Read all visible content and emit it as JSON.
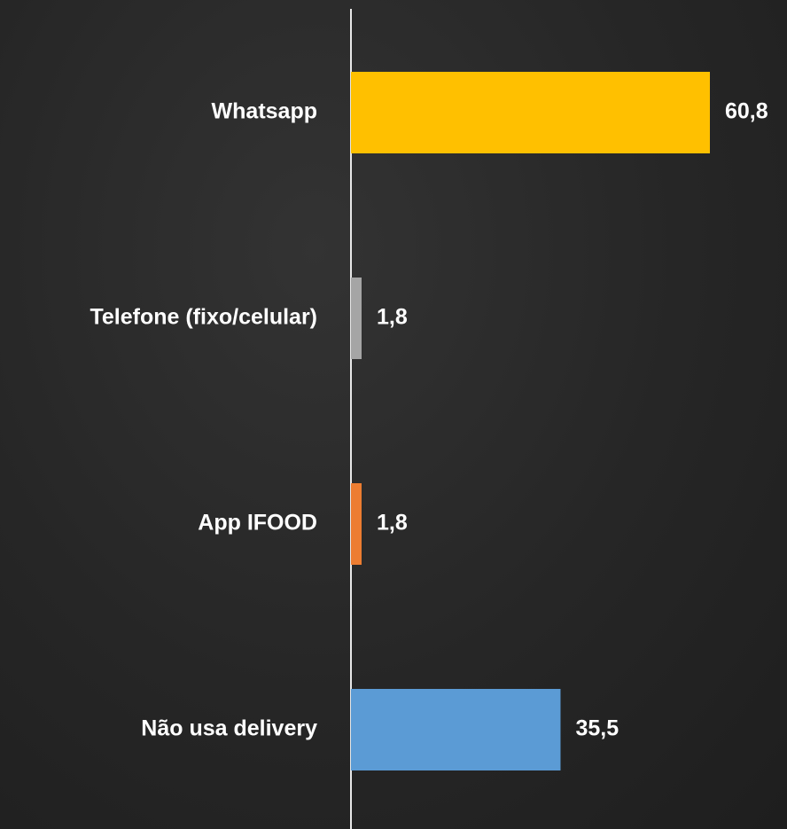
{
  "chart_data": {
    "type": "bar",
    "orientation": "horizontal",
    "categories": [
      "Whatsapp",
      "Telefone (fixo/celular)",
      "App IFOOD",
      "Não usa delivery"
    ],
    "values": [
      60.8,
      1.8,
      1.8,
      35.5
    ],
    "value_labels": [
      "60,8",
      "1,8",
      "1,8",
      "35,5"
    ],
    "colors": [
      "#ffc000",
      "#a5a5a5",
      "#ed7d31",
      "#5b9bd5"
    ]
  }
}
